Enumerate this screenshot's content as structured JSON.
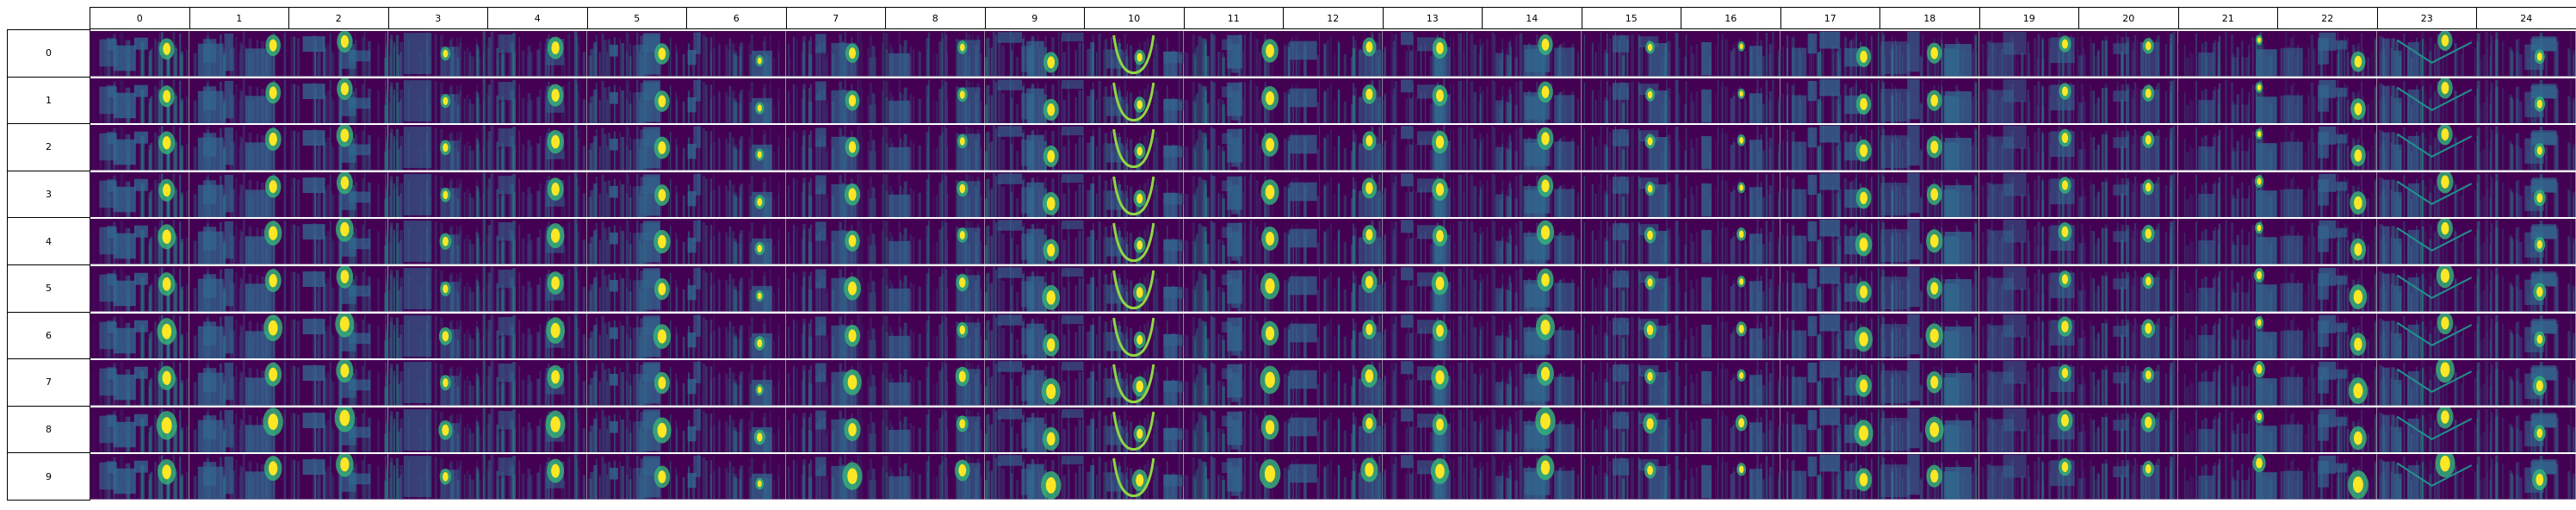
{
  "columns": [
    "0",
    "1",
    "2",
    "3",
    "4",
    "5",
    "6",
    "7",
    "8",
    "9",
    "10",
    "11",
    "12",
    "13",
    "14",
    "15",
    "16",
    "17",
    "18",
    "19",
    "20",
    "21",
    "22",
    "23",
    "24"
  ],
  "rows": [
    "0",
    "1",
    "2",
    "3",
    "4",
    "5",
    "6",
    "7",
    "8",
    "9"
  ],
  "colors": {
    "background": "#440154",
    "dark": "#3b0f70",
    "mid": "#31688e",
    "teal": "#21918c",
    "green": "#35b779",
    "lime": "#90d743",
    "yellow": "#fde725",
    "separator": "#ffffff"
  }
}
